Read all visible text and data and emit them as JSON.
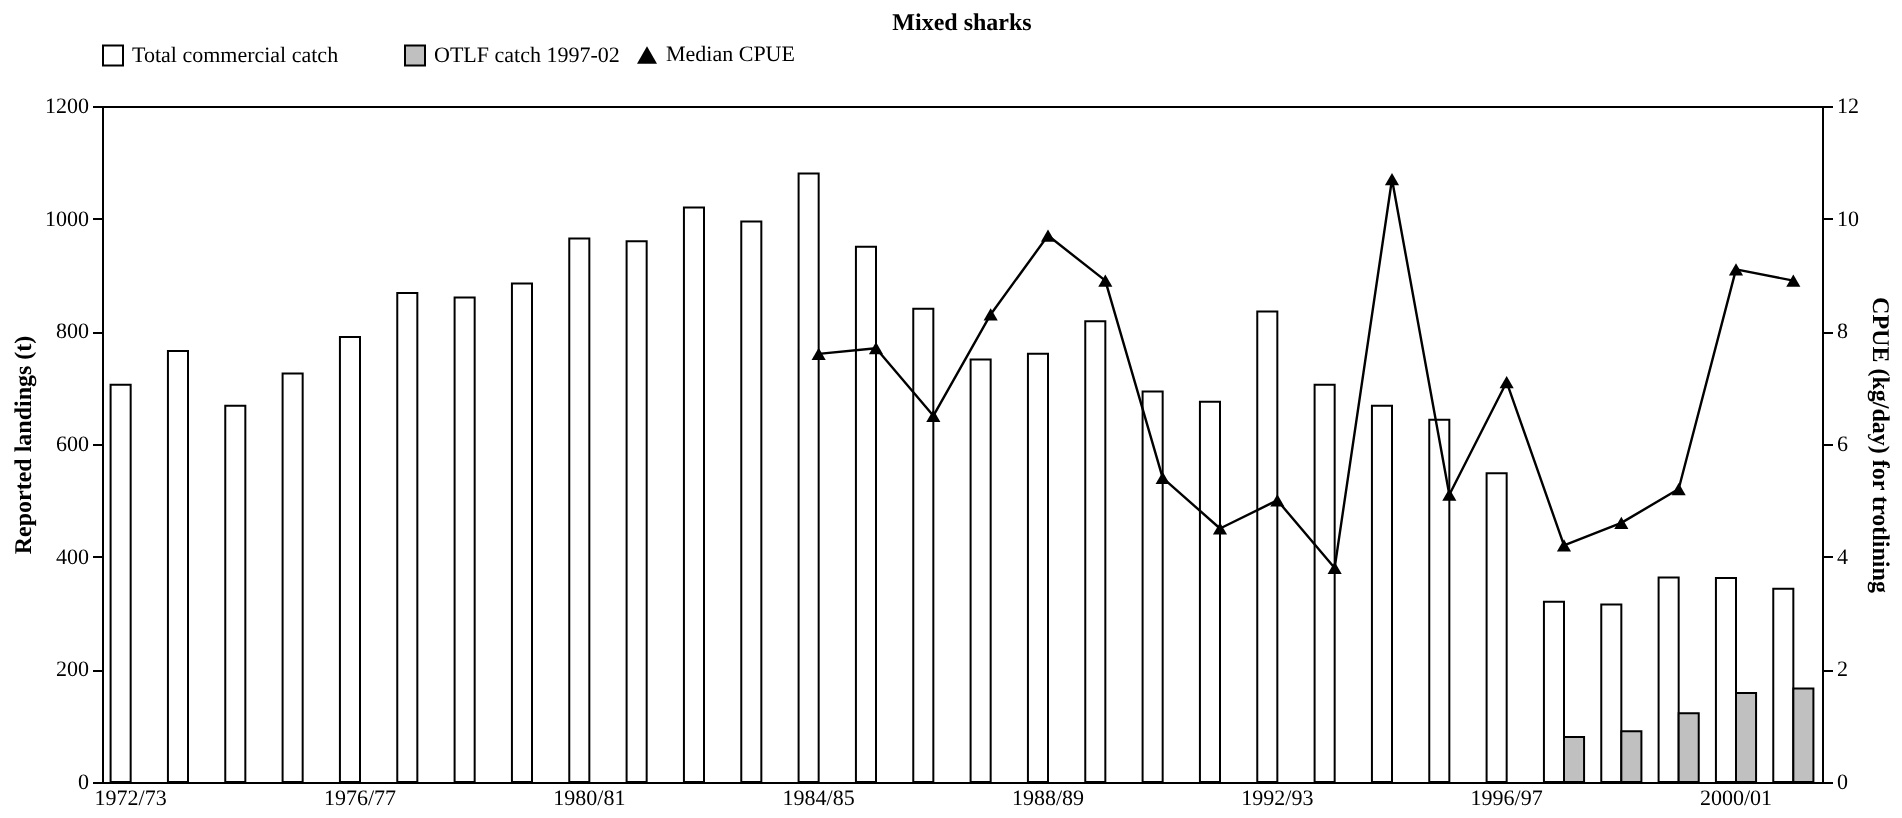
{
  "chart_data": {
    "type": "bar",
    "title": "Mixed sharks",
    "ylabel": "Reported landings (t)",
    "y2label": "CPUE (kg/day) for trotlining",
    "categories": [
      "1972/73",
      null,
      null,
      null,
      "1976/77",
      null,
      null,
      null,
      "1980/81",
      null,
      null,
      null,
      "1984/85",
      null,
      null,
      null,
      "1988/89",
      null,
      null,
      null,
      "1992/93",
      null,
      null,
      null,
      "1996/97",
      null,
      null,
      null,
      "2000/01",
      null
    ],
    "series": [
      {
        "name": "Total commercial catch",
        "type": "bar",
        "color": "#ffffff",
        "values": [
          705,
          765,
          668,
          725,
          790,
          868,
          860,
          885,
          965,
          960,
          1020,
          995,
          1080,
          950,
          840,
          750,
          760,
          818,
          693,
          675,
          835,
          705,
          668,
          643,
          548,
          320,
          315,
          363,
          362,
          343
        ]
      },
      {
        "name": "OTLF catch 1997-02",
        "type": "bar",
        "color": "#c0c0c0",
        "values": [
          null,
          null,
          null,
          null,
          null,
          null,
          null,
          null,
          null,
          null,
          null,
          null,
          null,
          null,
          null,
          null,
          null,
          null,
          null,
          null,
          null,
          null,
          null,
          null,
          null,
          80,
          90,
          122,
          158,
          166
        ]
      },
      {
        "name": "Median CPUE",
        "type": "line",
        "axis": "y2",
        "color": "#000000",
        "marker": "triangle",
        "values": [
          null,
          null,
          null,
          null,
          null,
          null,
          null,
          null,
          null,
          null,
          null,
          null,
          7.6,
          7.7,
          6.5,
          8.3,
          9.7,
          8.9,
          5.4,
          4.5,
          5.0,
          3.8,
          10.7,
          5.1,
          7.1,
          4.2,
          4.6,
          5.2,
          9.1,
          8.9
        ]
      }
    ],
    "ylim": [
      0,
      1200
    ],
    "yticks": [
      0,
      200,
      400,
      600,
      800,
      1000,
      1200
    ],
    "y2lim": [
      0,
      12
    ],
    "y2ticks": [
      0,
      2,
      4,
      6,
      8,
      10,
      12
    ],
    "grid": false,
    "legend": "top"
  }
}
